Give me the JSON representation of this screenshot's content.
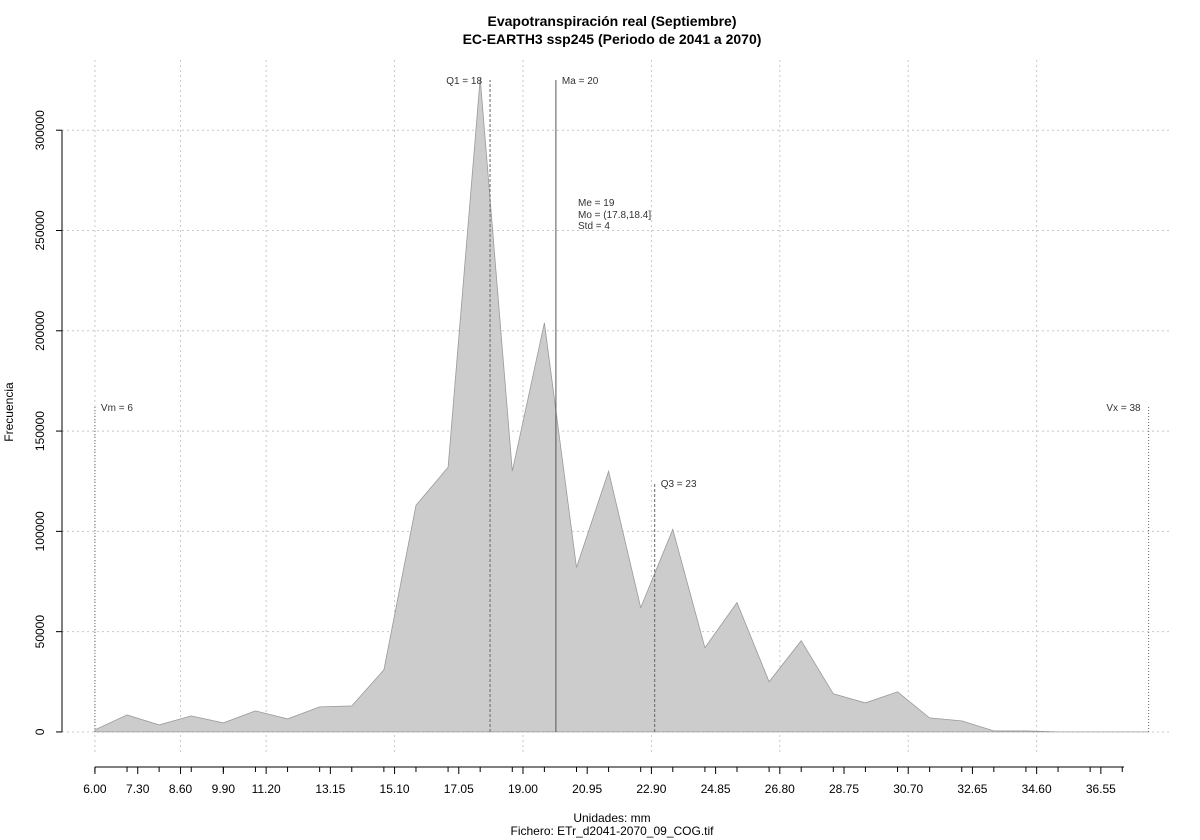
{
  "chart_data": {
    "type": "area",
    "title": "Evapotranspiración real (Septiembre)",
    "subtitle": "EC-EARTH3 ssp245 (Periodo de 2041 a 2070)",
    "xlabel": "Unidades: mm",
    "file_caption": "Fichero: ETr_d2041-2070_09_COG.tif",
    "ylabel": "Frecuencia",
    "grid": true,
    "fill_color": "#cccccc",
    "xlim": [
      5.0,
      38.65
    ],
    "ylim": [
      -10000,
      335000
    ],
    "x_tick_values": [
      6.0,
      7.3,
      8.6,
      9.9,
      11.2,
      13.15,
      15.1,
      17.05,
      19.0,
      20.95,
      22.9,
      24.85,
      26.8,
      28.75,
      30.7,
      32.65,
      34.6,
      36.55
    ],
    "x_tick_labels": [
      "6.00",
      "7.30",
      "8.60",
      "9.90",
      "11.20",
      "13.15",
      "15.10",
      "17.05",
      "19.00",
      "20.95",
      "22.90",
      "24.85",
      "26.80",
      "28.75",
      "30.70",
      "32.65",
      "34.60",
      "36.55"
    ],
    "y_tick_values": [
      0,
      50000,
      100000,
      150000,
      200000,
      250000,
      300000
    ],
    "y_tick_labels": [
      "0",
      "50000",
      "100000",
      "150000",
      "200000",
      "250000",
      "300000"
    ],
    "series": [
      {
        "x": [
          6.0,
          6.975,
          7.95,
          8.925,
          9.9,
          10.875,
          11.85,
          12.825,
          13.8,
          14.775,
          15.75,
          16.725,
          17.7,
          18.675,
          19.65,
          20.625,
          21.6,
          22.575,
          23.55,
          24.525,
          25.5,
          26.475,
          27.45,
          28.425,
          29.4,
          30.375,
          31.35,
          32.325,
          33.3,
          34.275,
          35.25,
          36.225,
          37.2,
          38.0
        ],
        "y": [
          1000,
          8500,
          3500,
          8000,
          4500,
          10500,
          6500,
          12500,
          13000,
          31000,
          113000,
          132000,
          326000,
          130000,
          204000,
          82000,
          130000,
          62000,
          101000,
          42000,
          64500,
          25000,
          45500,
          19000,
          14500,
          20000,
          7000,
          5500,
          500,
          500,
          0,
          0,
          0,
          0
        ]
      }
    ],
    "reference_lines": [
      {
        "label": "Vm = 6",
        "x": 6.0,
        "top": 162000,
        "style": "dotted"
      },
      {
        "label": "Q1 = 18",
        "x": 18.0,
        "top": 325000,
        "style": "dashed"
      },
      {
        "label": "Ma = 20",
        "x": 20.0,
        "top": 325000,
        "style": "solid"
      },
      {
        "label": "Q3 = 23",
        "x": 23.0,
        "top": 124000,
        "style": "dashed"
      },
      {
        "label": "Vx = 38",
        "x": 38.0,
        "top": 162000,
        "style": "dotted"
      }
    ],
    "stats_text": [
      "Me = 19",
      "Mo = (17.8,18.4]",
      "Std = 4"
    ]
  }
}
